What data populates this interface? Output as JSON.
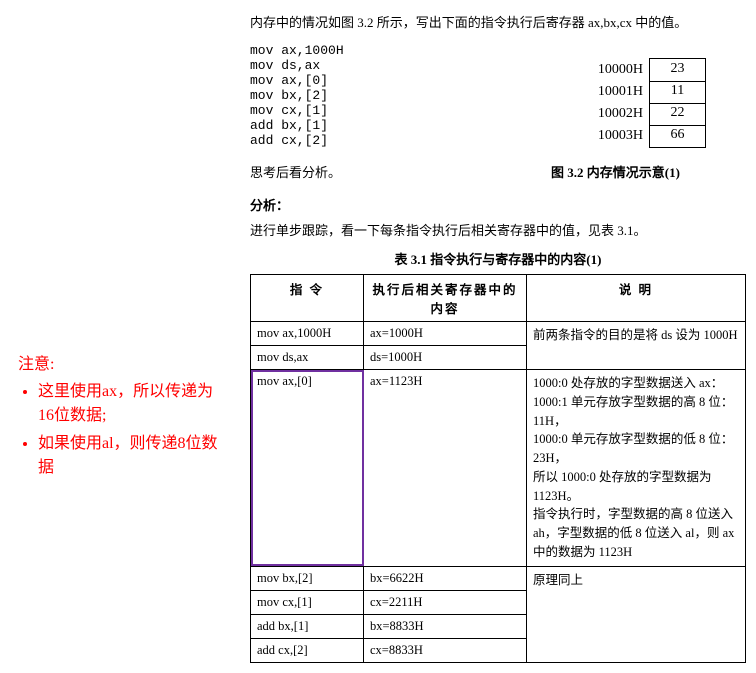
{
  "sidebar": {
    "note_title": "注意:",
    "items": [
      "这里使用ax，所以传递为16位数据;",
      "如果使用al，则传递8位数据"
    ]
  },
  "intro": "内存中的情况如图 3.2 所示，写出下面的指令执行后寄存器 ax,bx,cx 中的值。",
  "code": "mov ax,1000H\nmov ds,ax\nmov ax,[0]\nmov bx,[2]\nmov cx,[1]\nadd bx,[1]\nadd cx,[2]",
  "memory": {
    "rows": [
      {
        "addr": "10000H",
        "val": "23"
      },
      {
        "addr": "10001H",
        "val": "11"
      },
      {
        "addr": "10002H",
        "val": "22"
      },
      {
        "addr": "10003H",
        "val": "66"
      }
    ]
  },
  "think": "思考后看分析。",
  "fig_caption": "图 3.2    内存情况示意(1)",
  "analysis_label": "分析：",
  "step_text": "进行单步跟踪，看一下每条指令执行后相关寄存器中的值，见表 3.1。",
  "table_caption": "表 3.1    指令执行与寄存器中的内容(1)",
  "table": {
    "headers": [
      "指    令",
      "执行后相关寄存器中的内容",
      "说    明"
    ],
    "rows": [
      {
        "instr": "mov ax,1000H",
        "reg": "ax=1000H",
        "desc": "前两条指令的目的是将 ds 设为 1000H",
        "rowspan_desc": 2,
        "highlight": false
      },
      {
        "instr": "mov ds,ax",
        "reg": "ds=1000H",
        "desc": "",
        "highlight": false
      },
      {
        "instr": "mov ax,[0]",
        "reg": "ax=1123H",
        "desc": "1000:0 处存放的字型数据送入 ax：\n1000:1 单元存放字型数据的高 8 位：11H，\n1000:0 单元存放字型数据的低 8 位：23H，\n所以 1000:0 处存放的字型数据为 1123H。\n指令执行时，字型数据的高 8 位送入 ah，字型数据的低 8 位送入 al，则 ax 中的数据为 1123H",
        "highlight": true
      },
      {
        "instr": "mov bx,[2]",
        "reg": "bx=6622H",
        "desc": "原理同上",
        "rowspan_desc": 4,
        "highlight": false
      },
      {
        "instr": "mov cx,[1]",
        "reg": "cx=2211H",
        "desc": "",
        "highlight": false
      },
      {
        "instr": "add bx,[1]",
        "reg": "bx=8833H",
        "desc": "",
        "highlight": false
      },
      {
        "instr": "add cx,[2]",
        "reg": "cx=8833H",
        "desc": "",
        "highlight": false
      }
    ]
  }
}
